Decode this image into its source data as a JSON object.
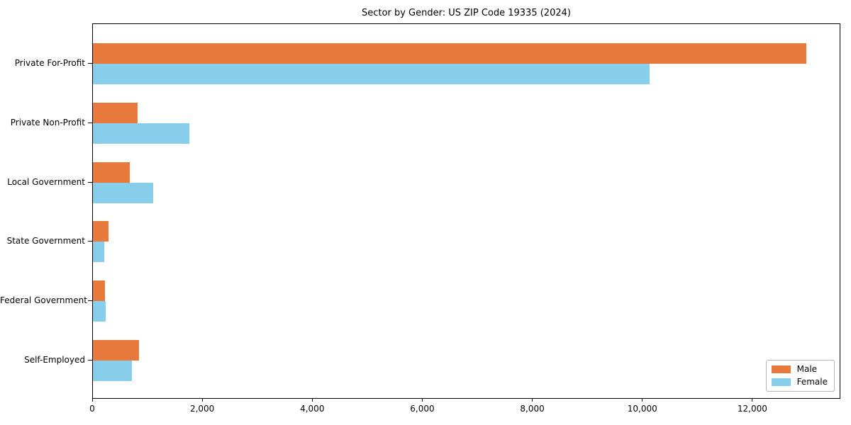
{
  "chart_data": {
    "type": "bar",
    "orientation": "horizontal",
    "title": "Sector by Gender: US ZIP Code 19335 (2024)",
    "categories": [
      "Private For-Profit",
      "Private Non-Profit",
      "Local Government",
      "State Government",
      "Federal Government",
      "Self-Employed"
    ],
    "series": [
      {
        "name": "Male",
        "color": "#E8793D",
        "values": [
          12970,
          810,
          670,
          290,
          220,
          840
        ]
      },
      {
        "name": "Female",
        "color": "#87CEEB",
        "values": [
          10120,
          1750,
          1090,
          210,
          230,
          710
        ]
      }
    ],
    "xlim": [
      0,
      13600
    ],
    "xticks": [
      0,
      2000,
      4000,
      6000,
      8000,
      10000,
      12000
    ],
    "xtick_labels": [
      "0",
      "2,000",
      "4,000",
      "6,000",
      "8,000",
      "10,000",
      "12,000"
    ],
    "xlabel": "",
    "ylabel": "",
    "grid": false,
    "legend_position": "lower right",
    "colors": {
      "axis": "#000000",
      "background": "#ffffff",
      "legend_border": "#b4b4b4"
    }
  }
}
